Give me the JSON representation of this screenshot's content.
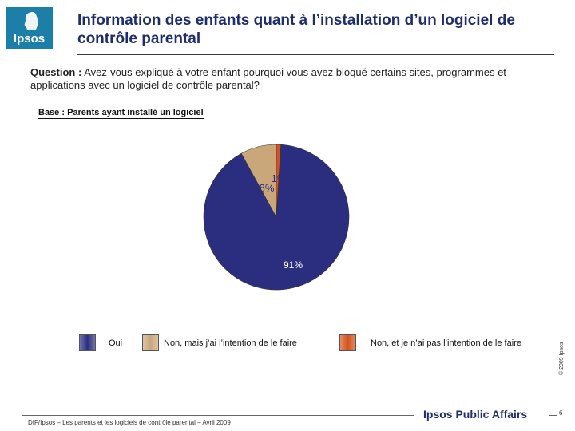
{
  "header": {
    "logo_text": "Ipsos",
    "title": "Information des enfants quant à l’installation d’un logiciel de contrôle parental"
  },
  "question": {
    "label": "Question :",
    "text": "Avez-vous expliqué à votre enfant pourquoi vous avez bloqué certains sites, programmes et applications avec un logiciel de contrôle parental?"
  },
  "base": "Base : Parents ayant installé un logiciel",
  "colors": {
    "oui": "#2b2e7e",
    "non_intention": "#c9a77a",
    "non_pas": "#d4531c"
  },
  "chart_data": {
    "type": "pie",
    "title": "",
    "slices": [
      {
        "label": "Oui",
        "value": 91,
        "display": "91%",
        "color": "#2b2e7e"
      },
      {
        "label": "Non, mais j’ai l’intention de le faire",
        "value": 8,
        "display": "8%",
        "color": "#c9a77a"
      },
      {
        "label": "Non, et je n’ai pas l’intention de le faire",
        "value": 1,
        "display": "1%",
        "color": "#d4531c"
      }
    ],
    "legend_position": "bottom"
  },
  "legend": [
    {
      "label": "Oui"
    },
    {
      "label": "Non, mais j’ai l’intention de le faire"
    },
    {
      "label": "Non, et je n’ai pas l’intention de le faire"
    }
  ],
  "copyright": "© 2009 Ipsos",
  "footer": {
    "source": "DIF/Ipsos – Les parents et les logiciels de contrôle parental – Avril 2009",
    "brand": "Ipsos Public Affairs",
    "page": "6"
  }
}
